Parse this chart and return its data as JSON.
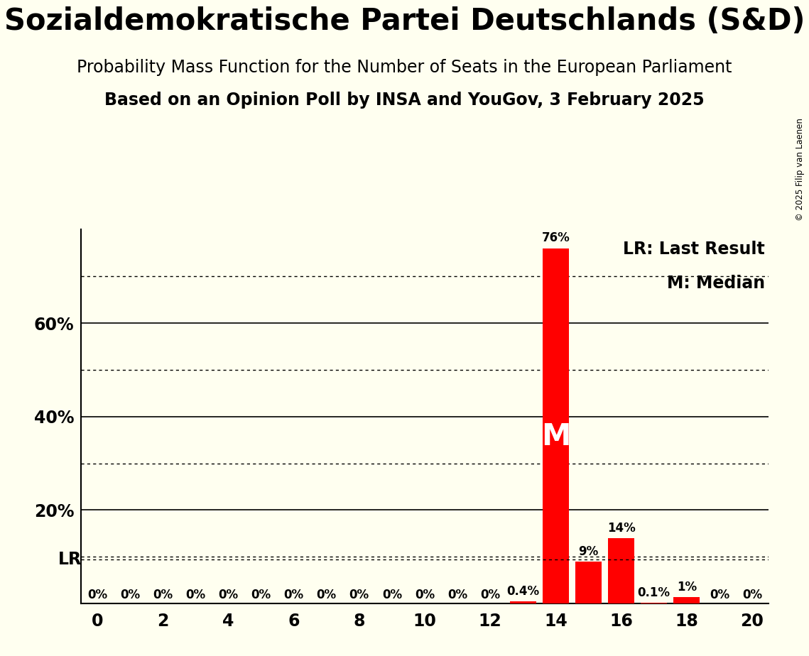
{
  "title": "Sozialdemokratische Partei Deutschlands (S&D)",
  "subtitle1": "Probability Mass Function for the Number of Seats in the European Parliament",
  "subtitle2": "Based on an Opinion Poll by INSA and YouGov, 3 February 2025",
  "copyright": "© 2025 Filip van Laenen",
  "seats": [
    0,
    1,
    2,
    3,
    4,
    5,
    6,
    7,
    8,
    9,
    10,
    11,
    12,
    13,
    14,
    15,
    16,
    17,
    18,
    19,
    20
  ],
  "probabilities": [
    0.0,
    0.0,
    0.0,
    0.0,
    0.0,
    0.0,
    0.0,
    0.0,
    0.0,
    0.0,
    0.0,
    0.0,
    0.0,
    0.4,
    76.0,
    9.0,
    14.0,
    0.1,
    1.4,
    0.0,
    0.0
  ],
  "bar_color": "#ff0000",
  "background_color": "#fffff0",
  "last_result": 14,
  "median": 14,
  "lr_line_y": 9.5,
  "ylim": [
    0,
    80
  ],
  "xlim": [
    -0.5,
    20.5
  ],
  "xticks": [
    0,
    2,
    4,
    6,
    8,
    10,
    12,
    14,
    16,
    18,
    20
  ],
  "ytick_labels_show": [
    20,
    40,
    60
  ],
  "solid_gridlines": [
    20,
    40,
    60
  ],
  "dotted_gridlines": [
    10,
    30,
    50,
    70
  ],
  "title_fontsize": 30,
  "subtitle1_fontsize": 17,
  "subtitle2_fontsize": 17,
  "legend_fontsize": 17,
  "bar_label_fontsize": 12,
  "axis_tick_fontsize": 17,
  "median_label": "M",
  "lr_label": "LR"
}
